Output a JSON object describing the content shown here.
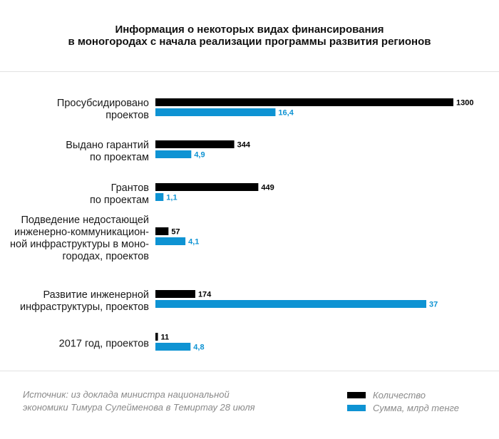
{
  "title_lines": [
    "Информация о некоторых видах финансирования",
    "в моногородах с начала реализации программы развития регионов"
  ],
  "source_lines": [
    "Источник: из доклада министра национальной",
    "экономики Тимура Сулейменова в Темиртау 28 июля"
  ],
  "colors": {
    "count": "#000000",
    "sum": "#0e93d3"
  },
  "chart_data": {
    "type": "bar",
    "orientation": "horizontal",
    "categories": [
      [
        "Просубсидировано",
        "проектов"
      ],
      [
        "Выдано гарантий",
        "по проектам"
      ],
      [
        "Грантов",
        "по проектам"
      ],
      [
        "Подведение недостающей",
        "инженерно-коммуникацион-",
        "ной инфраструктуры в моно-",
        "городах, проектов"
      ],
      [
        "Развитие инженерной",
        "инфраструктуры, проектов"
      ],
      [
        "2017 год, проектов"
      ]
    ],
    "series": [
      {
        "name": "Количество",
        "values": [
          1300,
          344,
          449,
          57,
          174,
          11
        ],
        "labels": [
          "1300",
          "344",
          "449",
          "57",
          "174",
          "11"
        ]
      },
      {
        "name": "Сумма, млрд тенге",
        "values": [
          16.4,
          4.9,
          1.1,
          4.1,
          37,
          4.8
        ],
        "labels": [
          "16,4",
          "4,9",
          "1,1",
          "4,1",
          "37",
          "4,8"
        ]
      }
    ],
    "legend_position": "bottom-right",
    "grid": false
  }
}
